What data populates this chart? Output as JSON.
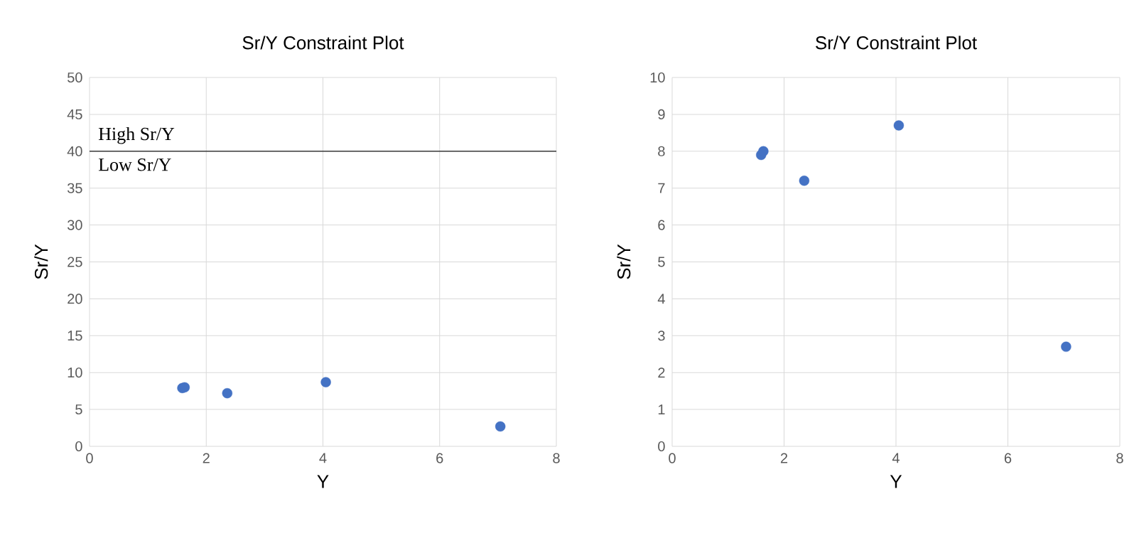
{
  "chart_data": [
    {
      "type": "scatter",
      "title": "Sr/Y  Constraint Plot",
      "xlabel": "Y",
      "ylabel": "Sr/Y",
      "x": [
        1.59,
        1.63,
        2.36,
        4.05,
        7.04
      ],
      "series": [
        {
          "color": "#4472c4",
          "values": [
            7.9,
            8.0,
            7.2,
            8.7,
            2.7
          ]
        }
      ],
      "xlim": [
        0,
        8
      ],
      "xticks": [
        0,
        2,
        4,
        6,
        8
      ],
      "ylim": [
        0,
        50
      ],
      "yticks": [
        0,
        5,
        10,
        15,
        20,
        25,
        30,
        35,
        40,
        45,
        50
      ],
      "grid": true,
      "marker": "circle",
      "ref_lines": [
        {
          "axis": "y",
          "value": 40,
          "color": "#000000"
        }
      ],
      "annotations": [
        "High Sr/Y",
        "Low Sr/Y"
      ]
    },
    {
      "type": "scatter",
      "title": "Sr/Y  Constraint Plot",
      "xlabel": "Y",
      "ylabel": "Sr/Y",
      "x": [
        1.59,
        1.63,
        2.36,
        4.05,
        7.04
      ],
      "series": [
        {
          "color": "#4472c4",
          "values": [
            7.9,
            8.0,
            7.2,
            8.7,
            2.7
          ]
        }
      ],
      "xlim": [
        0,
        8
      ],
      "xticks": [
        0,
        2,
        4,
        6,
        8
      ],
      "ylim": [
        0,
        10
      ],
      "yticks": [
        0,
        1,
        2,
        3,
        4,
        5,
        6,
        7,
        8,
        9,
        10
      ],
      "grid": true,
      "marker": "circle"
    }
  ]
}
